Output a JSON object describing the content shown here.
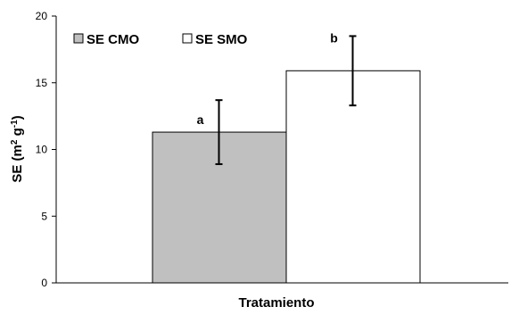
{
  "chart_data": {
    "type": "bar",
    "title": "",
    "xlabel": "Tratamiento",
    "ylabel_main": "SE (m",
    "ylabel_sup1": "2",
    "ylabel_mid": " g",
    "ylabel_sup2": "-1",
    "ylabel_end": ")",
    "ylim": [
      0,
      20
    ],
    "yticks": [
      "0",
      "5",
      "10",
      "15",
      "20"
    ],
    "grid": false,
    "legend_position": "top-left",
    "series": [
      {
        "name": "SE CMO",
        "value": 11.3,
        "error_low": 8.9,
        "error_high": 13.7,
        "label": "a",
        "color": "#c0c0c0"
      },
      {
        "name": "SE SMO",
        "value": 15.9,
        "error_low": 13.3,
        "error_high": 18.5,
        "label": "b",
        "color": "#ffffff"
      }
    ]
  }
}
